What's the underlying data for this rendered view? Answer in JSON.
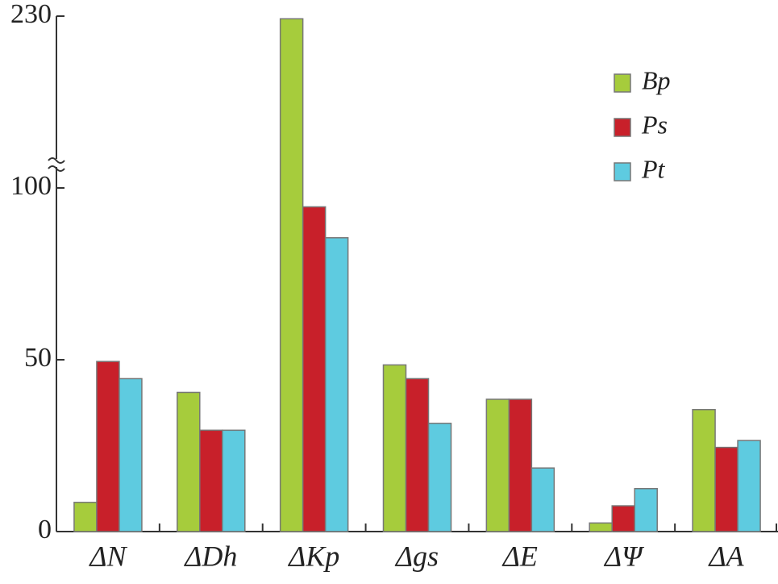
{
  "chart_data": {
    "type": "bar",
    "categories": [
      "ΔN",
      "ΔDh",
      "ΔKp",
      "Δgs",
      "ΔE",
      "ΔΨ",
      "ΔA"
    ],
    "series": [
      {
        "name": "Bp",
        "color": "#a6cc3c",
        "values": [
          8.5,
          40.5,
          228,
          48.5,
          38.5,
          2.5,
          35.5
        ]
      },
      {
        "name": "Ps",
        "color": "#c8202a",
        "values": [
          49.5,
          29.5,
          94.5,
          44.5,
          38.5,
          7.5,
          24.5
        ]
      },
      {
        "name": "Pt",
        "color": "#5ecbe0",
        "values": [
          44.5,
          29.5,
          85.5,
          31.5,
          18.5,
          12.5,
          26.5
        ]
      }
    ],
    "ylim": [
      0,
      230
    ],
    "yticks": [
      0,
      50,
      100,
      230
    ],
    "axis_break": true,
    "legend": "upper right"
  }
}
